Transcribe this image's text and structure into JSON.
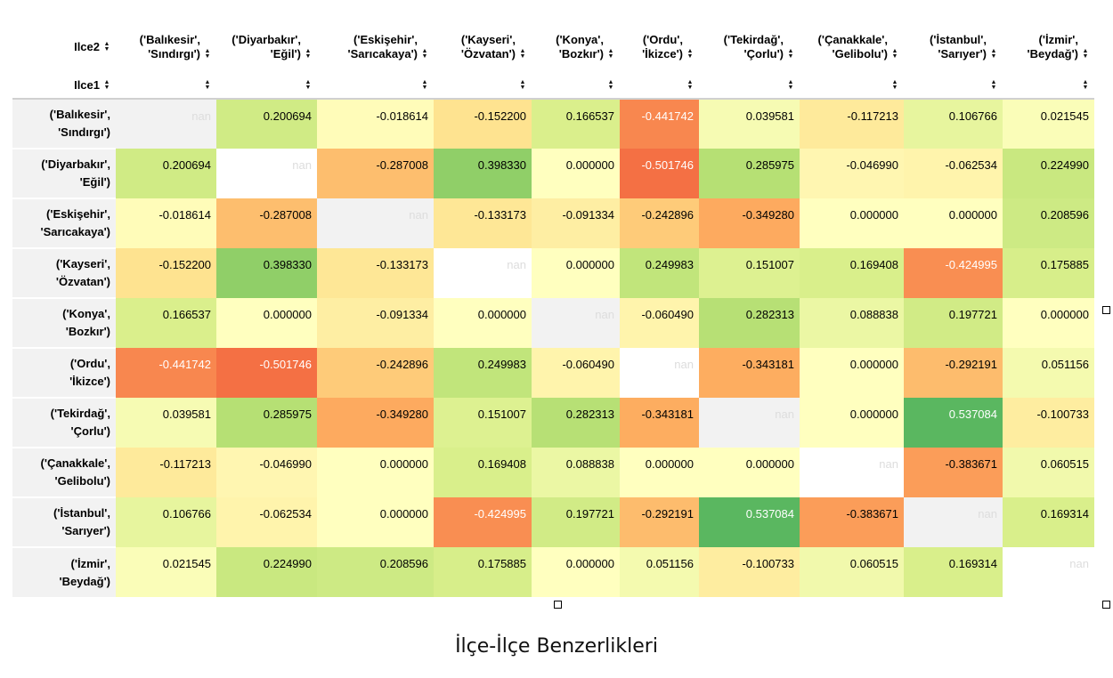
{
  "table": {
    "column_index_name": "Ilce2",
    "row_index_name": "Ilce1",
    "columns": [
      [
        "('Balıkesir',",
        "'Sındırgı')"
      ],
      [
        "('Diyarbakır',",
        "'Eğil')"
      ],
      [
        "('Eskişehir',",
        "'Sarıcakaya')"
      ],
      [
        "('Kayseri',",
        "'Özvatan')"
      ],
      [
        "('Konya',",
        "'Bozkır')"
      ],
      [
        "('Ordu',",
        "'İkizce')"
      ],
      [
        "('Tekirdağ',",
        "'Çorlu')"
      ],
      [
        "('Çanakkale',",
        "'Gelibolu')"
      ],
      [
        "('İstanbul',",
        "'Sarıyer')"
      ],
      [
        "('İzmir',",
        "'Beydağ')"
      ]
    ],
    "rows": [
      [
        "('Balıkesir',",
        "'Sındırgı')"
      ],
      [
        "('Diyarbakır',",
        "'Eğil')"
      ],
      [
        "('Eskişehir',",
        "'Sarıcakaya')"
      ],
      [
        "('Kayseri',",
        "'Özvatan')"
      ],
      [
        "('Konya',",
        "'Bozkır')"
      ],
      [
        "('Ordu',",
        "'İkizce')"
      ],
      [
        "('Tekirdağ',",
        "'Çorlu')"
      ],
      [
        "('Çanakkale',",
        "'Gelibolu')"
      ],
      [
        "('İstanbul',",
        "'Sarıyer')"
      ],
      [
        "('İzmir',",
        "'Beydağ')"
      ]
    ],
    "values": [
      [
        "nan",
        "0.200694",
        "-0.018614",
        "-0.152200",
        "0.166537",
        "-0.441742",
        "0.039581",
        "-0.117213",
        "0.106766",
        "0.021545"
      ],
      [
        "0.200694",
        "nan",
        "-0.287008",
        "0.398330",
        "0.000000",
        "-0.501746",
        "0.285975",
        "-0.046990",
        "-0.062534",
        "0.224990"
      ],
      [
        "-0.018614",
        "-0.287008",
        "nan",
        "-0.133173",
        "-0.091334",
        "-0.242896",
        "-0.349280",
        "0.000000",
        "0.000000",
        "0.208596"
      ],
      [
        "-0.152200",
        "0.398330",
        "-0.133173",
        "nan",
        "0.000000",
        "0.249983",
        "0.151007",
        "0.169408",
        "-0.424995",
        "0.175885"
      ],
      [
        "0.166537",
        "0.000000",
        "-0.091334",
        "0.000000",
        "nan",
        "-0.060490",
        "0.282313",
        "0.088838",
        "0.197721",
        "0.000000"
      ],
      [
        "-0.441742",
        "-0.501746",
        "-0.242896",
        "0.249983",
        "-0.060490",
        "nan",
        "-0.343181",
        "0.000000",
        "-0.292191",
        "0.051156"
      ],
      [
        "0.039581",
        "0.285975",
        "-0.349280",
        "0.151007",
        "0.282313",
        "-0.343181",
        "nan",
        "0.000000",
        "0.537084",
        "-0.100733"
      ],
      [
        "-0.117213",
        "-0.046990",
        "0.000000",
        "0.169408",
        "0.088838",
        "0.000000",
        "0.000000",
        "nan",
        "-0.383671",
        "0.060515"
      ],
      [
        "0.106766",
        "-0.062534",
        "0.000000",
        "-0.424995",
        "0.197721",
        "-0.292191",
        "0.537084",
        "-0.383671",
        "nan",
        "0.169314"
      ],
      [
        "0.021545",
        "0.224990",
        "0.208596",
        "0.175885",
        "0.000000",
        "0.051156",
        "-0.100733",
        "0.060515",
        "0.169314",
        "nan"
      ]
    ]
  },
  "nan_backgrounds": [
    "#f2f2f2",
    "#ffffff",
    "#f2f2f2",
    "#ffffff",
    "#f2f2f2",
    "#ffffff",
    "#f2f2f2",
    "#ffffff",
    "#f2f2f2",
    "#ffffff"
  ],
  "color_scale": {
    "colormap": "RdYlGn",
    "min": -0.85,
    "max": 0.85,
    "nan_color": "#aaaaaa"
  },
  "caption": "İlçe-İlçe Benzerlikleri",
  "icons": {
    "sort": "sort-icon",
    "resize": "resize-handle-icon"
  }
}
